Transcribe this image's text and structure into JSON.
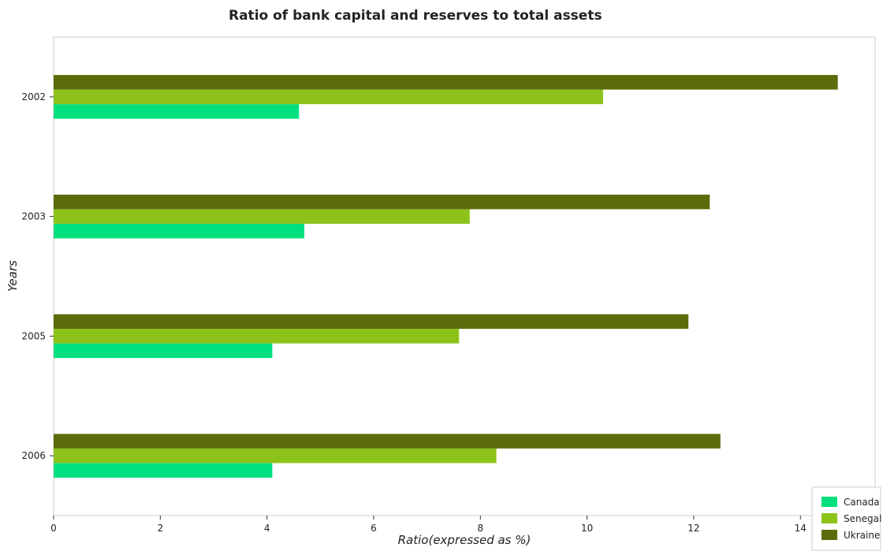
{
  "chart_data": {
    "type": "bar",
    "orientation": "horizontal",
    "title": "Ratio of bank capital and reserves to total assets",
    "xlabel": "Ratio(expressed as %)",
    "ylabel": "Years",
    "categories": [
      "2002",
      "2003",
      "2005",
      "2006"
    ],
    "xlim": [
      0,
      15.4
    ],
    "xticks": [
      0,
      2,
      4,
      6,
      8,
      10,
      12,
      14
    ],
    "xtick_labels": [
      "0",
      "2",
      "4",
      "6",
      "8",
      "10",
      "12",
      "14"
    ],
    "grid": false,
    "legend_position": "bottom-right",
    "series": [
      {
        "name": "Canada",
        "color": "#00e07f",
        "values": [
          4.6,
          4.7,
          4.1,
          4.1
        ]
      },
      {
        "name": "Senegal",
        "color": "#8cc21a",
        "values": [
          10.3,
          7.8,
          7.6,
          8.3
        ]
      },
      {
        "name": "Ukraine",
        "color": "#5e6b0a",
        "values": [
          14.7,
          12.3,
          11.9,
          12.5
        ]
      }
    ]
  }
}
